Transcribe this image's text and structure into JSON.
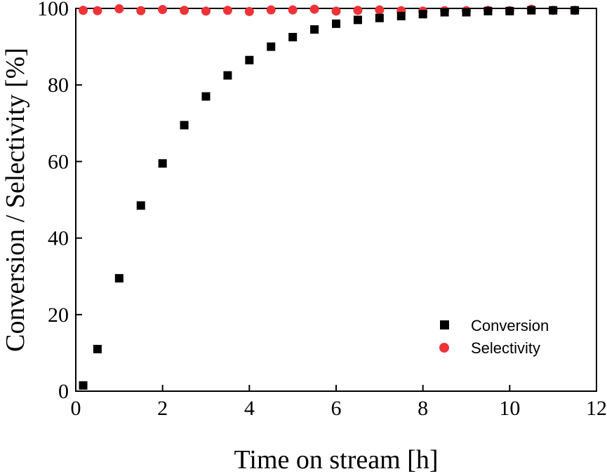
{
  "chart_data": {
    "type": "scatter",
    "title": "",
    "xlabel": "Time on stream [h]",
    "ylabel": "Conversion / Selectivity [%]",
    "xlim": [
      0,
      12
    ],
    "ylim": [
      0,
      100
    ],
    "xticks": [
      0,
      2,
      4,
      6,
      8,
      10,
      12
    ],
    "yticks": [
      0,
      20,
      40,
      60,
      80,
      100
    ],
    "xtick_labels": [
      "0",
      "2",
      "4",
      "6",
      "8",
      "10",
      "12"
    ],
    "ytick_labels": [
      "0",
      "20",
      "40",
      "60",
      "80",
      "100"
    ],
    "grid": false,
    "legend_position": "bottom-right",
    "series": [
      {
        "name": "Conversion",
        "marker": "square",
        "color": "#000000",
        "x": [
          0.17,
          0.5,
          1.0,
          1.5,
          2.0,
          2.5,
          3.0,
          3.5,
          4.0,
          4.5,
          5.0,
          5.5,
          6.0,
          6.5,
          7.0,
          7.5,
          8.0,
          8.5,
          9.0,
          9.5,
          10.0,
          10.5,
          11.0,
          11.5
        ],
        "y": [
          1.5,
          11.0,
          29.5,
          48.5,
          59.5,
          69.5,
          77.0,
          82.5,
          86.5,
          90.0,
          92.5,
          94.5,
          96.0,
          97.0,
          97.5,
          98.0,
          98.5,
          99.0,
          99.0,
          99.3,
          99.3,
          99.5,
          99.5,
          99.5
        ]
      },
      {
        "name": "Selectivity",
        "marker": "circle",
        "color": "#ee3338",
        "x": [
          0.17,
          0.5,
          1.0,
          1.5,
          2.0,
          2.5,
          3.0,
          3.5,
          4.0,
          4.5,
          5.0,
          5.5,
          6.0,
          6.5,
          7.0,
          7.5,
          8.0,
          8.5,
          9.0,
          9.5,
          10.0,
          10.5,
          11.0,
          11.5
        ],
        "y": [
          99.5,
          99.4,
          99.9,
          99.4,
          99.7,
          99.5,
          99.3,
          99.5,
          99.2,
          99.6,
          99.6,
          99.8,
          99.3,
          99.5,
          99.6,
          99.4,
          99.3,
          99.4,
          99.4,
          99.5,
          99.4,
          99.8,
          99.5,
          99.5
        ]
      }
    ]
  }
}
